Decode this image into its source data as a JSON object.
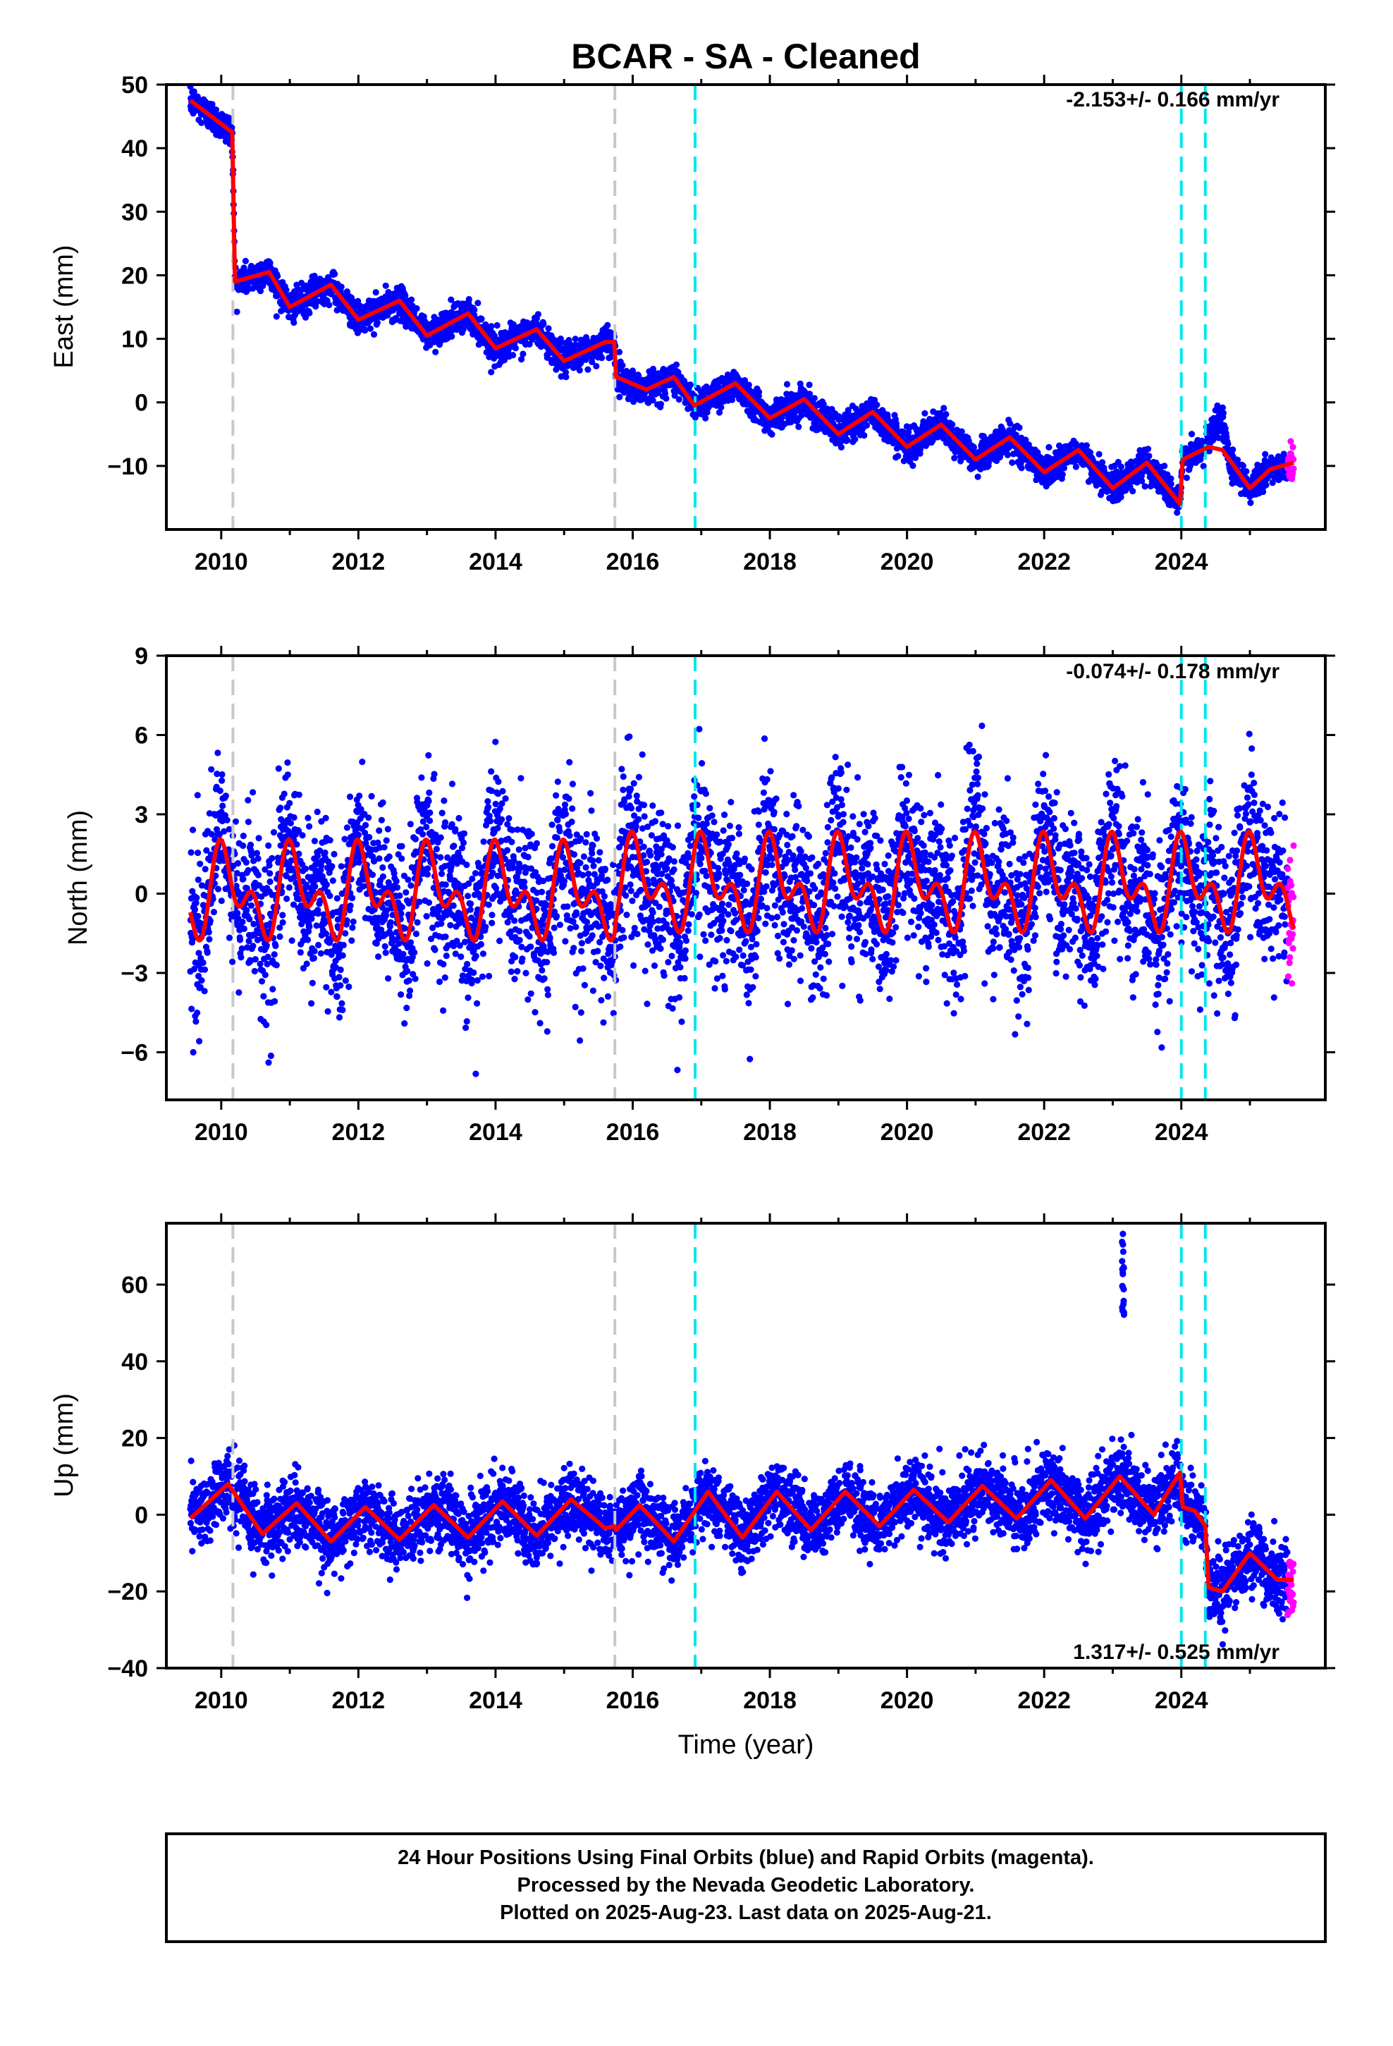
{
  "colors": {
    "final_orbit_points": "#0000ff",
    "rapid_orbit_points": "#ff00ff",
    "model_fit": "#ff0000",
    "equipment_change_line": "#c8c8c8",
    "earthquake_line": "#00e5ee"
  },
  "chart_data": [
    {
      "type": "scatter",
      "title": "BCAR  - SA - Cleaned",
      "xlabel": "",
      "ylabel": "East (mm)",
      "xlim": [
        2009.2,
        2026.1
      ],
      "ylim": [
        -20,
        50
      ],
      "xticks": [
        "2010",
        "2012",
        "2014",
        "2016",
        "2018",
        "2020",
        "2022",
        "2024"
      ],
      "yticks": [
        "50",
        "40",
        "30",
        "20",
        "10",
        "0",
        "-10"
      ],
      "rate_text": "-2.153+/- 0.166 mm/yr",
      "rate_position": "top-right",
      "gray_dashed_lines": [
        2010.17,
        2015.74
      ],
      "cyan_dashed_lines": [
        2016.91,
        2024.0,
        2024.35
      ],
      "series": [
        {
          "name": "Final Orbits",
          "style": "blue-points"
        },
        {
          "name": "Rapid Orbits",
          "style": "magenta-points",
          "x_range": [
            2025.55,
            2025.64
          ]
        },
        {
          "name": "Model",
          "style": "red-line",
          "x": [
            2009.55,
            2010.16,
            2010.2,
            2010.7,
            2011.0,
            2011.6,
            2012.0,
            2012.6,
            2013.0,
            2013.6,
            2014.0,
            2014.6,
            2015.0,
            2015.6,
            2015.73,
            2015.76,
            2016.2,
            2016.6,
            2016.9,
            2017.5,
            2018.0,
            2018.5,
            2019.0,
            2019.5,
            2020.0,
            2020.5,
            2021.0,
            2021.5,
            2022.0,
            2022.5,
            2023.0,
            2023.5,
            2023.98,
            2024.02,
            2024.4,
            2024.6,
            2025.0,
            2025.3,
            2025.64
          ],
          "y": [
            47.5,
            42.5,
            19,
            20.5,
            15,
            18.5,
            13,
            16,
            10.5,
            14,
            8.5,
            11.5,
            6.5,
            9.5,
            9.5,
            4,
            2,
            4,
            -0.5,
            3,
            -2.5,
            0.5,
            -5,
            -1.5,
            -7,
            -3.5,
            -9,
            -5.5,
            -11,
            -7.5,
            -13.5,
            -9.5,
            -16,
            -9,
            -7,
            -7.5,
            -13.5,
            -10.5,
            -9.5
          ]
        }
      ]
    },
    {
      "type": "scatter",
      "title": "",
      "xlabel": "",
      "ylabel": "North (mm)",
      "xlim": [
        2009.2,
        2026.1
      ],
      "ylim": [
        -7.8,
        9
      ],
      "xticks": [
        "2010",
        "2012",
        "2014",
        "2016",
        "2018",
        "2020",
        "2022",
        "2024"
      ],
      "yticks": [
        "9",
        "6",
        "3",
        "0",
        "-3",
        "-6"
      ],
      "rate_text": "-0.074+/- 0.178 mm/yr",
      "rate_position": "top-right",
      "gray_dashed_lines": [
        2010.17,
        2015.74
      ],
      "cyan_dashed_lines": [
        2016.91,
        2024.0,
        2024.35
      ],
      "series": [
        {
          "name": "Final Orbits",
          "style": "blue-points"
        },
        {
          "name": "Rapid Orbits",
          "style": "magenta-points",
          "x_range": [
            2025.55,
            2025.64
          ]
        },
        {
          "name": "Model",
          "style": "red-line",
          "harmonic": {
            "base_before_offset": 0.0,
            "base_after_offset": 0.3,
            "offset_epoch": 2015.74,
            "annual_amplitude": 1.2,
            "semiannual_amplitude": 1.0,
            "phase_annual": 1.2,
            "phase_semiannual": 2.0
          }
        }
      ]
    },
    {
      "type": "scatter",
      "title": "",
      "xlabel": "Time (year)",
      "ylabel": "Up (mm)",
      "xlim": [
        2009.2,
        2026.1
      ],
      "ylim": [
        -40,
        76
      ],
      "xticks": [
        "2010",
        "2012",
        "2014",
        "2016",
        "2018",
        "2020",
        "2022",
        "2024"
      ],
      "yticks": [
        "60",
        "40",
        "20",
        "0",
        "-20",
        "-40"
      ],
      "rate_text": "1.317+/- 0.525 mm/yr",
      "rate_position": "bottom-right",
      "gray_dashed_lines": [
        2010.17,
        2015.74
      ],
      "cyan_dashed_lines": [
        2016.91,
        2024.0,
        2024.35
      ],
      "outliers": {
        "x": 2023.15,
        "y_range": [
          52,
          75
        ]
      },
      "series": [
        {
          "name": "Final Orbits",
          "style": "blue-points"
        },
        {
          "name": "Rapid Orbits",
          "style": "magenta-points",
          "x_range": [
            2025.55,
            2025.64
          ]
        },
        {
          "name": "Model",
          "style": "red-line",
          "x": [
            2009.55,
            2010.1,
            2010.6,
            2011.1,
            2011.6,
            2012.1,
            2012.6,
            2013.1,
            2013.6,
            2014.1,
            2014.6,
            2015.1,
            2015.6,
            2015.73,
            2015.76,
            2016.1,
            2016.6,
            2017.1,
            2017.6,
            2018.1,
            2018.6,
            2019.1,
            2019.6,
            2020.1,
            2020.6,
            2021.1,
            2021.6,
            2022.1,
            2022.6,
            2023.1,
            2023.6,
            2023.98,
            2024.02,
            2024.2,
            2024.35,
            2024.4,
            2024.6,
            2025.0,
            2025.4,
            2025.64
          ],
          "y": [
            -1,
            8,
            -5,
            3,
            -7,
            2,
            -6.5,
            2.5,
            -6,
            3.5,
            -5.5,
            4,
            -3.5,
            -3,
            -4,
            2.5,
            -7,
            6,
            -6,
            6,
            -4,
            6,
            -3,
            6.5,
            -2,
            7.5,
            -1,
            9,
            -1,
            10,
            0,
            11,
            2,
            1,
            -3,
            -19,
            -20,
            -10,
            -17,
            -17
          ]
        }
      ]
    }
  ],
  "footer": {
    "line1": "24 Hour Positions Using Final Orbits (blue) and Rapid Orbits (magenta).",
    "line2": "Processed by the Nevada Geodetic Laboratory.",
    "line3": "Plotted on 2025-Aug-23. Last data on 2025-Aug-21."
  }
}
